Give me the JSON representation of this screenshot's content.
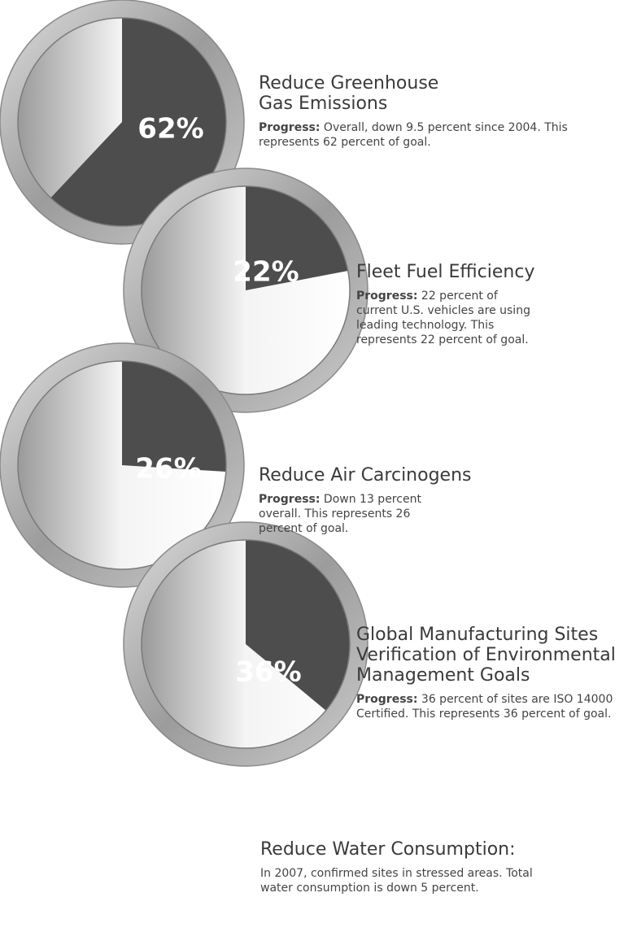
{
  "chart_data": [
    {
      "type": "pie",
      "title": "Reduce Greenhouse Gas Emissions",
      "values": [
        62
      ],
      "value_labels": [
        "62%"
      ],
      "note_label": "Progress:",
      "note": "Overall, down 9.5 percent since 2004. This represents 62 percent of goal."
    },
    {
      "type": "pie",
      "title": "Fleet Fuel Efficiency",
      "values": [
        22
      ],
      "value_labels": [
        "22%"
      ],
      "note_label": "Progress:",
      "note": "22 percent of current U.S. vehicles are using leading technology. This represents 22 percent of goal."
    },
    {
      "type": "pie",
      "title": "Reduce Air Carcinogens",
      "values": [
        26
      ],
      "value_labels": [
        "26%"
      ],
      "note_label": "Progress:",
      "note": "Down 13 percent overall. This represents 26 percent of goal."
    },
    {
      "type": "pie",
      "title": "Global Manufacturing Sites Verification of Environmental Management Goals",
      "values": [
        36
      ],
      "value_labels": [
        "36%"
      ],
      "note_label": "Progress:",
      "note": "36 percent of sites are ISO 14000 Certified. This represents 36 percent of goal."
    }
  ],
  "footer": {
    "title": "Reduce Water Consumption:",
    "text": "In 2007, confirmed sites in stressed areas. Total water consumption is down 5 percent."
  }
}
